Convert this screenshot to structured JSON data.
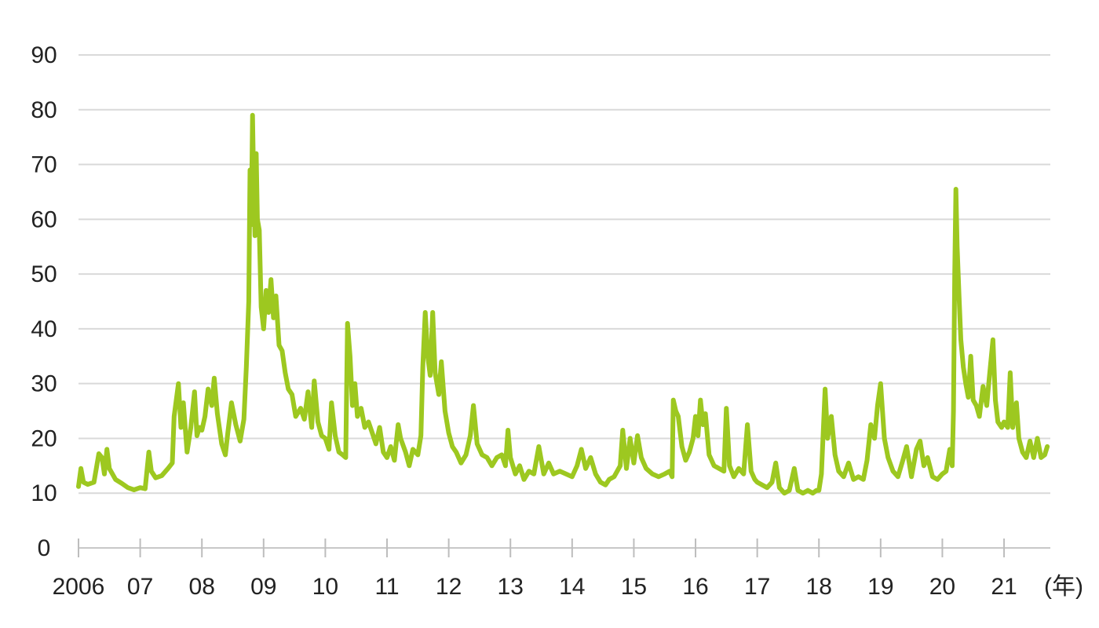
{
  "chart_data": {
    "type": "line",
    "title": "",
    "xlabel": "",
    "ylabel": "",
    "x_unit_label": "(年)",
    "ylim": [
      0,
      90
    ],
    "y_ticks": [
      0,
      10,
      20,
      30,
      40,
      50,
      60,
      70,
      80,
      90
    ],
    "x_range": [
      2006,
      2021.75
    ],
    "x_ticks": [
      {
        "value": 2006,
        "label": "2006"
      },
      {
        "value": 2007,
        "label": "07"
      },
      {
        "value": 2008,
        "label": "08"
      },
      {
        "value": 2009,
        "label": "09"
      },
      {
        "value": 2010,
        "label": "10"
      },
      {
        "value": 2011,
        "label": "11"
      },
      {
        "value": 2012,
        "label": "12"
      },
      {
        "value": 2013,
        "label": "13"
      },
      {
        "value": 2014,
        "label": "14"
      },
      {
        "value": 2015,
        "label": "15"
      },
      {
        "value": 2016,
        "label": "16"
      },
      {
        "value": 2017,
        "label": "17"
      },
      {
        "value": 2018,
        "label": "18"
      },
      {
        "value": 2019,
        "label": "19"
      },
      {
        "value": 2020,
        "label": "20"
      },
      {
        "value": 2021,
        "label": "21"
      }
    ],
    "grid": true,
    "legend": "none",
    "series": [
      {
        "color": "#9dc820",
        "points": [
          [
            2006.0,
            11.2
          ],
          [
            2006.04,
            14.5
          ],
          [
            2006.08,
            12.0
          ],
          [
            2006.15,
            11.6
          ],
          [
            2006.25,
            12.0
          ],
          [
            2006.33,
            17.2
          ],
          [
            2006.38,
            16.5
          ],
          [
            2006.42,
            13.5
          ],
          [
            2006.46,
            18.0
          ],
          [
            2006.5,
            14.5
          ],
          [
            2006.6,
            12.5
          ],
          [
            2006.7,
            11.8
          ],
          [
            2006.8,
            11.0
          ],
          [
            2006.9,
            10.6
          ],
          [
            2007.0,
            11.0
          ],
          [
            2007.08,
            10.8
          ],
          [
            2007.14,
            17.5
          ],
          [
            2007.18,
            14.0
          ],
          [
            2007.25,
            12.8
          ],
          [
            2007.35,
            13.2
          ],
          [
            2007.45,
            14.5
          ],
          [
            2007.52,
            15.5
          ],
          [
            2007.55,
            24.0
          ],
          [
            2007.62,
            30.0
          ],
          [
            2007.66,
            22.0
          ],
          [
            2007.7,
            26.5
          ],
          [
            2007.76,
            17.5
          ],
          [
            2007.82,
            22.0
          ],
          [
            2007.88,
            28.5
          ],
          [
            2007.92,
            20.5
          ],
          [
            2007.96,
            22.0
          ],
          [
            2008.0,
            21.5
          ],
          [
            2008.05,
            24.0
          ],
          [
            2008.1,
            29.0
          ],
          [
            2008.16,
            26.0
          ],
          [
            2008.2,
            31.0
          ],
          [
            2008.25,
            24.5
          ],
          [
            2008.32,
            19.0
          ],
          [
            2008.38,
            17.0
          ],
          [
            2008.42,
            21.0
          ],
          [
            2008.48,
            26.5
          ],
          [
            2008.55,
            22.5
          ],
          [
            2008.62,
            19.5
          ],
          [
            2008.68,
            23.5
          ],
          [
            2008.72,
            33.0
          ],
          [
            2008.76,
            45.0
          ],
          [
            2008.78,
            69.0
          ],
          [
            2008.8,
            59.0
          ],
          [
            2008.82,
            79.0
          ],
          [
            2008.84,
            66.0
          ],
          [
            2008.86,
            57.0
          ],
          [
            2008.88,
            72.0
          ],
          [
            2008.9,
            60.0
          ],
          [
            2008.93,
            58.0
          ],
          [
            2008.96,
            44.0
          ],
          [
            2009.0,
            40.0
          ],
          [
            2009.04,
            47.0
          ],
          [
            2009.08,
            43.0
          ],
          [
            2009.12,
            49.0
          ],
          [
            2009.16,
            42.0
          ],
          [
            2009.2,
            46.0
          ],
          [
            2009.25,
            37.0
          ],
          [
            2009.3,
            36.0
          ],
          [
            2009.35,
            32.0
          ],
          [
            2009.4,
            29.0
          ],
          [
            2009.46,
            28.0
          ],
          [
            2009.52,
            24.0
          ],
          [
            2009.6,
            25.5
          ],
          [
            2009.66,
            23.5
          ],
          [
            2009.72,
            28.5
          ],
          [
            2009.78,
            22.0
          ],
          [
            2009.82,
            30.5
          ],
          [
            2009.88,
            23.0
          ],
          [
            2009.94,
            20.5
          ],
          [
            2010.0,
            20.0
          ],
          [
            2010.06,
            18.0
          ],
          [
            2010.1,
            26.5
          ],
          [
            2010.16,
            20.5
          ],
          [
            2010.22,
            17.5
          ],
          [
            2010.28,
            17.0
          ],
          [
            2010.33,
            16.5
          ],
          [
            2010.36,
            41.0
          ],
          [
            2010.4,
            35.0
          ],
          [
            2010.44,
            26.0
          ],
          [
            2010.48,
            30.0
          ],
          [
            2010.52,
            24.0
          ],
          [
            2010.58,
            25.5
          ],
          [
            2010.64,
            22.0
          ],
          [
            2010.7,
            23.0
          ],
          [
            2010.76,
            21.0
          ],
          [
            2010.82,
            19.0
          ],
          [
            2010.88,
            22.0
          ],
          [
            2010.94,
            17.5
          ],
          [
            2011.0,
            16.5
          ],
          [
            2011.06,
            18.5
          ],
          [
            2011.12,
            16.0
          ],
          [
            2011.18,
            22.5
          ],
          [
            2011.22,
            20.0
          ],
          [
            2011.3,
            17.5
          ],
          [
            2011.36,
            15.0
          ],
          [
            2011.42,
            18.0
          ],
          [
            2011.5,
            17.0
          ],
          [
            2011.55,
            20.5
          ],
          [
            2011.58,
            33.0
          ],
          [
            2011.62,
            43.0
          ],
          [
            2011.66,
            35.0
          ],
          [
            2011.7,
            31.5
          ],
          [
            2011.74,
            43.0
          ],
          [
            2011.78,
            32.0
          ],
          [
            2011.84,
            28.0
          ],
          [
            2011.88,
            34.0
          ],
          [
            2011.94,
            25.0
          ],
          [
            2012.0,
            21.0
          ],
          [
            2012.06,
            18.5
          ],
          [
            2012.12,
            17.5
          ],
          [
            2012.2,
            15.5
          ],
          [
            2012.28,
            17.0
          ],
          [
            2012.35,
            20.5
          ],
          [
            2012.4,
            26.0
          ],
          [
            2012.46,
            19.0
          ],
          [
            2012.54,
            17.0
          ],
          [
            2012.62,
            16.5
          ],
          [
            2012.7,
            15.0
          ],
          [
            2012.78,
            16.5
          ],
          [
            2012.86,
            17.0
          ],
          [
            2012.92,
            15.0
          ],
          [
            2012.96,
            21.5
          ],
          [
            2013.0,
            16.5
          ],
          [
            2013.08,
            13.5
          ],
          [
            2013.15,
            15.0
          ],
          [
            2013.22,
            12.5
          ],
          [
            2013.3,
            14.0
          ],
          [
            2013.38,
            13.5
          ],
          [
            2013.46,
            18.5
          ],
          [
            2013.54,
            13.5
          ],
          [
            2013.62,
            15.5
          ],
          [
            2013.7,
            13.5
          ],
          [
            2013.8,
            14.0
          ],
          [
            2013.9,
            13.5
          ],
          [
            2014.0,
            13.0
          ],
          [
            2014.08,
            15.0
          ],
          [
            2014.15,
            18.0
          ],
          [
            2014.22,
            14.5
          ],
          [
            2014.3,
            16.5
          ],
          [
            2014.38,
            13.5
          ],
          [
            2014.46,
            12.0
          ],
          [
            2014.54,
            11.5
          ],
          [
            2014.6,
            12.5
          ],
          [
            2014.68,
            13.0
          ],
          [
            2014.78,
            15.0
          ],
          [
            2014.82,
            21.5
          ],
          [
            2014.88,
            14.5
          ],
          [
            2014.94,
            20.0
          ],
          [
            2015.0,
            15.5
          ],
          [
            2015.06,
            20.5
          ],
          [
            2015.12,
            16.5
          ],
          [
            2015.2,
            14.5
          ],
          [
            2015.3,
            13.5
          ],
          [
            2015.4,
            13.0
          ],
          [
            2015.5,
            13.5
          ],
          [
            2015.58,
            14.0
          ],
          [
            2015.62,
            13.0
          ],
          [
            2015.64,
            27.0
          ],
          [
            2015.68,
            25.0
          ],
          [
            2015.72,
            24.0
          ],
          [
            2015.78,
            18.5
          ],
          [
            2015.84,
            16.0
          ],
          [
            2015.9,
            17.5
          ],
          [
            2015.96,
            20.0
          ],
          [
            2016.0,
            24.0
          ],
          [
            2016.04,
            20.5
          ],
          [
            2016.08,
            27.0
          ],
          [
            2016.12,
            22.5
          ],
          [
            2016.16,
            24.5
          ],
          [
            2016.22,
            17.0
          ],
          [
            2016.3,
            15.0
          ],
          [
            2016.38,
            14.5
          ],
          [
            2016.46,
            14.0
          ],
          [
            2016.5,
            25.5
          ],
          [
            2016.55,
            15.0
          ],
          [
            2016.62,
            13.0
          ],
          [
            2016.7,
            14.5
          ],
          [
            2016.78,
            13.5
          ],
          [
            2016.84,
            22.5
          ],
          [
            2016.9,
            14.0
          ],
          [
            2016.96,
            12.5
          ],
          [
            2017.0,
            12.0
          ],
          [
            2017.08,
            11.5
          ],
          [
            2017.16,
            11.0
          ],
          [
            2017.24,
            12.0
          ],
          [
            2017.3,
            15.5
          ],
          [
            2017.36,
            11.0
          ],
          [
            2017.44,
            10.0
          ],
          [
            2017.52,
            10.5
          ],
          [
            2017.6,
            14.5
          ],
          [
            2017.66,
            10.5
          ],
          [
            2017.74,
            10.0
          ],
          [
            2017.82,
            10.5
          ],
          [
            2017.9,
            10.0
          ],
          [
            2017.96,
            10.5
          ],
          [
            2018.0,
            10.5
          ],
          [
            2018.04,
            13.5
          ],
          [
            2018.1,
            29.0
          ],
          [
            2018.14,
            20.0
          ],
          [
            2018.2,
            24.0
          ],
          [
            2018.26,
            17.0
          ],
          [
            2018.32,
            14.0
          ],
          [
            2018.4,
            13.0
          ],
          [
            2018.48,
            15.5
          ],
          [
            2018.56,
            12.5
          ],
          [
            2018.64,
            13.0
          ],
          [
            2018.72,
            12.5
          ],
          [
            2018.78,
            16.0
          ],
          [
            2018.84,
            22.5
          ],
          [
            2018.9,
            20.0
          ],
          [
            2018.95,
            26.0
          ],
          [
            2019.0,
            30.0
          ],
          [
            2019.06,
            20.0
          ],
          [
            2019.12,
            16.5
          ],
          [
            2019.2,
            14.0
          ],
          [
            2019.28,
            13.0
          ],
          [
            2019.36,
            16.0
          ],
          [
            2019.42,
            18.5
          ],
          [
            2019.5,
            13.0
          ],
          [
            2019.58,
            18.0
          ],
          [
            2019.64,
            19.5
          ],
          [
            2019.7,
            15.0
          ],
          [
            2019.76,
            16.5
          ],
          [
            2019.84,
            13.0
          ],
          [
            2019.92,
            12.5
          ],
          [
            2020.0,
            13.5
          ],
          [
            2020.06,
            14.0
          ],
          [
            2020.12,
            18.0
          ],
          [
            2020.16,
            15.0
          ],
          [
            2020.18,
            25.0
          ],
          [
            2020.2,
            50.0
          ],
          [
            2020.22,
            65.5
          ],
          [
            2020.24,
            55.0
          ],
          [
            2020.27,
            46.0
          ],
          [
            2020.3,
            38.0
          ],
          [
            2020.34,
            33.0
          ],
          [
            2020.38,
            30.0
          ],
          [
            2020.42,
            27.5
          ],
          [
            2020.46,
            35.0
          ],
          [
            2020.5,
            27.0
          ],
          [
            2020.55,
            26.0
          ],
          [
            2020.6,
            24.0
          ],
          [
            2020.66,
            29.5
          ],
          [
            2020.72,
            26.0
          ],
          [
            2020.76,
            31.0
          ],
          [
            2020.82,
            38.0
          ],
          [
            2020.86,
            27.0
          ],
          [
            2020.9,
            23.0
          ],
          [
            2020.96,
            22.0
          ],
          [
            2021.0,
            23.0
          ],
          [
            2021.06,
            22.0
          ],
          [
            2021.1,
            32.0
          ],
          [
            2021.14,
            22.0
          ],
          [
            2021.2,
            26.5
          ],
          [
            2021.24,
            20.0
          ],
          [
            2021.3,
            17.5
          ],
          [
            2021.36,
            16.5
          ],
          [
            2021.42,
            19.5
          ],
          [
            2021.48,
            16.5
          ],
          [
            2021.54,
            20.0
          ],
          [
            2021.6,
            16.5
          ],
          [
            2021.66,
            17.0
          ],
          [
            2021.7,
            18.5
          ]
        ]
      }
    ]
  }
}
